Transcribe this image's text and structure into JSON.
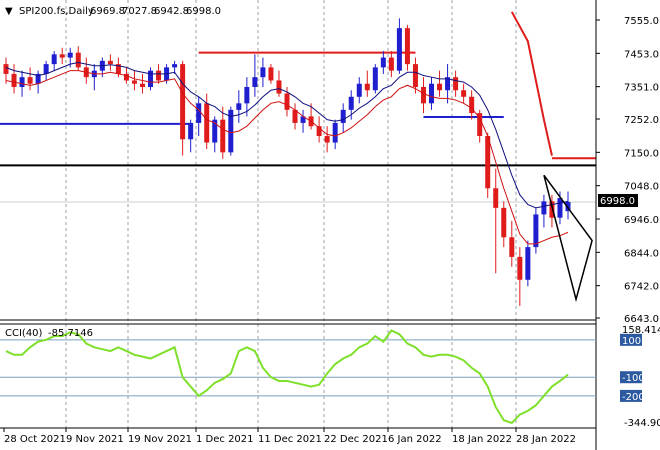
{
  "symbol_header": {
    "marker": "▼",
    "symbol": "SPI200.fs,Daily",
    "open": "6969.8",
    "high": "7027.8",
    "low": "6942.8",
    "close": "6998.0"
  },
  "price_axis": {
    "ticks": [
      "7555.0",
      "7453.0",
      "7351.0",
      "7252.0",
      "7150.0",
      "7048.0",
      "6946.0",
      "6844.0",
      "6742.0",
      "6643.0"
    ],
    "current_price": "6998.0"
  },
  "indicator": {
    "label": "CCI(40)",
    "value": "-85.7146",
    "max_label": "158.4144",
    "min_label": "-344.901",
    "levels": [
      "100",
      "-100",
      "-200"
    ],
    "level_values": [
      100,
      -100,
      -200
    ]
  },
  "date_axis": [
    "28 Oct 2021",
    "9 Nov 2021",
    "19 Nov 2021",
    "1 Dec 2021",
    "11 Dec 2021",
    "22 Dec 2021",
    "6 Jan 2022",
    "18 Jan 2022",
    "28 Jan 2022"
  ],
  "colors": {
    "bull": "#1f1fd0",
    "bear": "#e01b1b",
    "ma_slow": "#101080",
    "ma_fast": "#d01010",
    "cci": "#7fe02a",
    "grid": "#9aa0a6",
    "level_line": "#7aa0c0"
  },
  "chart_data": [
    {
      "type": "candlestick",
      "title": "SPI200.fs,Daily",
      "ylim": [
        6643,
        7580
      ],
      "candles": [
        [
          7420,
          7440,
          7360,
          7390
        ],
        [
          7390,
          7420,
          7330,
          7350
        ],
        [
          7350,
          7400,
          7320,
          7380
        ],
        [
          7380,
          7410,
          7340,
          7360
        ],
        [
          7360,
          7400,
          7330,
          7390
        ],
        [
          7390,
          7430,
          7370,
          7420
        ],
        [
          7420,
          7460,
          7400,
          7450
        ],
        [
          7450,
          7470,
          7420,
          7440
        ],
        [
          7440,
          7470,
          7410,
          7455
        ],
        [
          7455,
          7475,
          7400,
          7410
        ],
        [
          7410,
          7440,
          7360,
          7380
        ],
        [
          7380,
          7420,
          7340,
          7400
        ],
        [
          7400,
          7440,
          7380,
          7430
        ],
        [
          7430,
          7450,
          7400,
          7420
        ],
        [
          7420,
          7440,
          7380,
          7390
        ],
        [
          7390,
          7410,
          7360,
          7370
        ],
        [
          7370,
          7400,
          7340,
          7360
        ],
        [
          7360,
          7390,
          7330,
          7350
        ],
        [
          7350,
          7410,
          7340,
          7400
        ],
        [
          7400,
          7420,
          7360,
          7370
        ],
        [
          7370,
          7420,
          7360,
          7410
        ],
        [
          7410,
          7430,
          7390,
          7420
        ],
        [
          7420,
          7430,
          7140,
          7190
        ],
        [
          7190,
          7250,
          7150,
          7240
        ],
        [
          7240,
          7320,
          7200,
          7300
        ],
        [
          7300,
          7330,
          7160,
          7180
        ],
        [
          7180,
          7260,
          7150,
          7250
        ],
        [
          7250,
          7290,
          7130,
          7150
        ],
        [
          7150,
          7290,
          7140,
          7280
        ],
        [
          7280,
          7340,
          7240,
          7300
        ],
        [
          7300,
          7380,
          7260,
          7350
        ],
        [
          7350,
          7450,
          7320,
          7380
        ],
        [
          7380,
          7440,
          7350,
          7410
        ],
        [
          7410,
          7420,
          7360,
          7370
        ],
        [
          7370,
          7400,
          7320,
          7330
        ],
        [
          7330,
          7350,
          7260,
          7280
        ],
        [
          7280,
          7300,
          7220,
          7240
        ],
        [
          7240,
          7280,
          7210,
          7260
        ],
        [
          7260,
          7300,
          7220,
          7230
        ],
        [
          7230,
          7260,
          7180,
          7200
        ],
        [
          7200,
          7230,
          7150,
          7180
        ],
        [
          7180,
          7250,
          7160,
          7240
        ],
        [
          7240,
          7300,
          7210,
          7280
        ],
        [
          7280,
          7340,
          7250,
          7320
        ],
        [
          7320,
          7380,
          7300,
          7360
        ],
        [
          7360,
          7400,
          7320,
          7340
        ],
        [
          7340,
          7420,
          7330,
          7410
        ],
        [
          7410,
          7460,
          7390,
          7440
        ],
        [
          7440,
          7460,
          7380,
          7400
        ],
        [
          7400,
          7560,
          7390,
          7530
        ],
        [
          7530,
          7540,
          7400,
          7420
        ],
        [
          7420,
          7440,
          7330,
          7350
        ],
        [
          7350,
          7380,
          7270,
          7300
        ],
        [
          7300,
          7380,
          7280,
          7360
        ],
        [
          7360,
          7400,
          7320,
          7340
        ],
        [
          7340,
          7420,
          7300,
          7380
        ],
        [
          7380,
          7400,
          7320,
          7340
        ],
        [
          7340,
          7360,
          7300,
          7320
        ],
        [
          7320,
          7340,
          7250,
          7270
        ],
        [
          7270,
          7280,
          7180,
          7200
        ],
        [
          7200,
          7210,
          7010,
          7040
        ],
        [
          7040,
          7100,
          6780,
          6980
        ],
        [
          6980,
          7000,
          6860,
          6890
        ],
        [
          6890,
          6940,
          6800,
          6830
        ],
        [
          6830,
          6860,
          6680,
          6760
        ],
        [
          6760,
          6880,
          6740,
          6860
        ],
        [
          6860,
          6980,
          6840,
          6960
        ],
        [
          6960,
          7020,
          6920,
          7000
        ],
        [
          7000,
          7020,
          6920,
          6950
        ],
        [
          6950,
          7030,
          6930,
          7010
        ],
        [
          6970,
          7030,
          6945,
          6998
        ]
      ],
      "ma_slow": [
        7410,
        7400,
        7395,
        7390,
        7385,
        7390,
        7400,
        7410,
        7420,
        7425,
        7420,
        7415,
        7415,
        7418,
        7415,
        7410,
        7400,
        7395,
        7390,
        7390,
        7390,
        7395,
        7360,
        7335,
        7320,
        7300,
        7290,
        7270,
        7260,
        7265,
        7275,
        7295,
        7320,
        7340,
        7345,
        7335,
        7320,
        7300,
        7290,
        7270,
        7250,
        7245,
        7250,
        7265,
        7285,
        7300,
        7320,
        7345,
        7355,
        7380,
        7395,
        7395,
        7385,
        7380,
        7375,
        7375,
        7370,
        7365,
        7350,
        7325,
        7280,
        7220,
        7150,
        7080,
        7020,
        6990,
        6980,
        6985,
        6990,
        6995,
        7000
      ],
      "ma_fast": [
        7370,
        7365,
        7360,
        7355,
        7360,
        7370,
        7380,
        7390,
        7400,
        7400,
        7395,
        7390,
        7390,
        7395,
        7390,
        7385,
        7375,
        7370,
        7365,
        7365,
        7370,
        7375,
        7330,
        7300,
        7280,
        7250,
        7240,
        7220,
        7210,
        7215,
        7230,
        7255,
        7280,
        7300,
        7305,
        7295,
        7280,
        7260,
        7245,
        7225,
        7205,
        7200,
        7210,
        7225,
        7245,
        7265,
        7290,
        7310,
        7320,
        7345,
        7355,
        7345,
        7330,
        7320,
        7315,
        7315,
        7310,
        7300,
        7285,
        7255,
        7200,
        7120,
        7040,
        6970,
        6900,
        6870,
        6870,
        6880,
        6890,
        6895,
        6905
      ],
      "hlines": [
        {
          "color": "#e01b1b",
          "y": 7455,
          "from": 24,
          "to": 51
        },
        {
          "color": "#1f1fd0",
          "y": 7237,
          "from": 0,
          "to": 23
        },
        {
          "color": "#1f1fd0",
          "y": 7258,
          "from": 52,
          "to": 62
        },
        {
          "color": "#000000",
          "y": 7110,
          "from": 0,
          "to": 80
        },
        {
          "color": "#e01b1b",
          "y": 7132,
          "from": 68,
          "to": 79
        }
      ],
      "red_steep_line": [
        [
          63,
          7580
        ],
        [
          65,
          7490
        ],
        [
          67,
          7250
        ],
        [
          68,
          7140
        ]
      ],
      "black_triangle": [
        [
          67,
          7080
        ],
        [
          73,
          6880
        ],
        [
          71,
          6700
        ],
        [
          67,
          7080
        ]
      ]
    },
    {
      "type": "line",
      "title": "CCI(40)",
      "ylim": [
        -345,
        158
      ],
      "series": [
        {
          "values": [
            40,
            20,
            20,
            60,
            90,
            100,
            120,
            120,
            140,
            130,
            80,
            60,
            50,
            40,
            60,
            40,
            20,
            10,
            0,
            20,
            40,
            60,
            -100,
            -150,
            -200,
            -170,
            -130,
            -110,
            -80,
            40,
            60,
            40,
            -50,
            -100,
            -120,
            -120,
            -130,
            -140,
            -150,
            -140,
            -80,
            -30,
            0,
            20,
            60,
            80,
            120,
            90,
            150,
            130,
            80,
            60,
            20,
            10,
            20,
            20,
            10,
            -10,
            -50,
            -80,
            -150,
            -260,
            -330,
            -345,
            -300,
            -280,
            -250,
            -200,
            -150,
            -120,
            -86
          ]
        }
      ]
    }
  ]
}
